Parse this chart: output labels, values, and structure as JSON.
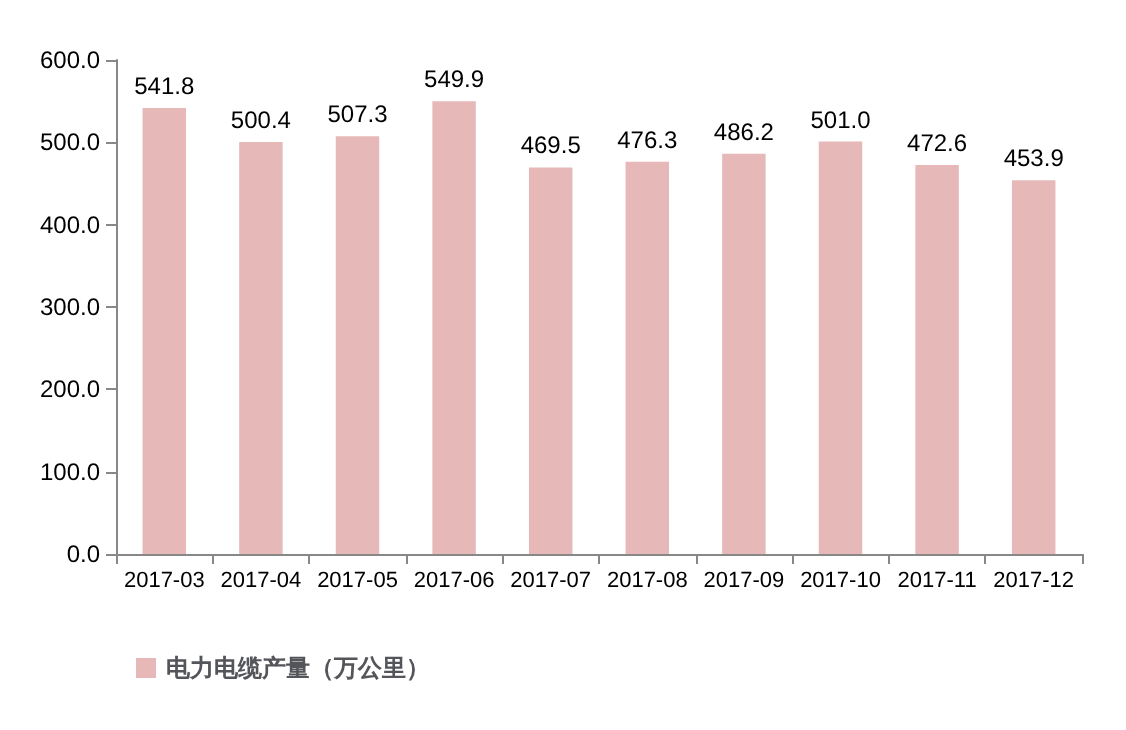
{
  "chart_data": {
    "type": "bar",
    "categories": [
      "2017-03",
      "2017-04",
      "2017-05",
      "2017-06",
      "2017-07",
      "2017-08",
      "2017-09",
      "2017-10",
      "2017-11",
      "2017-12"
    ],
    "series": [
      {
        "name": "电力电缆产量（万公里）",
        "color": "#e6b9b8",
        "values": [
          541.8,
          500.4,
          507.3,
          549.9,
          469.5,
          476.3,
          486.2,
          501.0,
          472.6,
          453.9
        ],
        "value_labels": [
          "541.8",
          "500.4",
          "507.3",
          "549.9",
          "469.5",
          "476.3",
          "486.2",
          "501.0",
          "472.6",
          "453.9"
        ]
      }
    ],
    "ylim": [
      0,
      600
    ],
    "yticks": [
      {
        "value": 0,
        "label": "0.0"
      },
      {
        "value": 100,
        "label": "100.0"
      },
      {
        "value": 200,
        "label": "200.0"
      },
      {
        "value": 300,
        "label": "300.0"
      },
      {
        "value": 400,
        "label": "400.0"
      },
      {
        "value": 500,
        "label": "500.0"
      },
      {
        "value": 600,
        "label": "600.0"
      }
    ],
    "grid": false,
    "legend": "bottom left"
  }
}
